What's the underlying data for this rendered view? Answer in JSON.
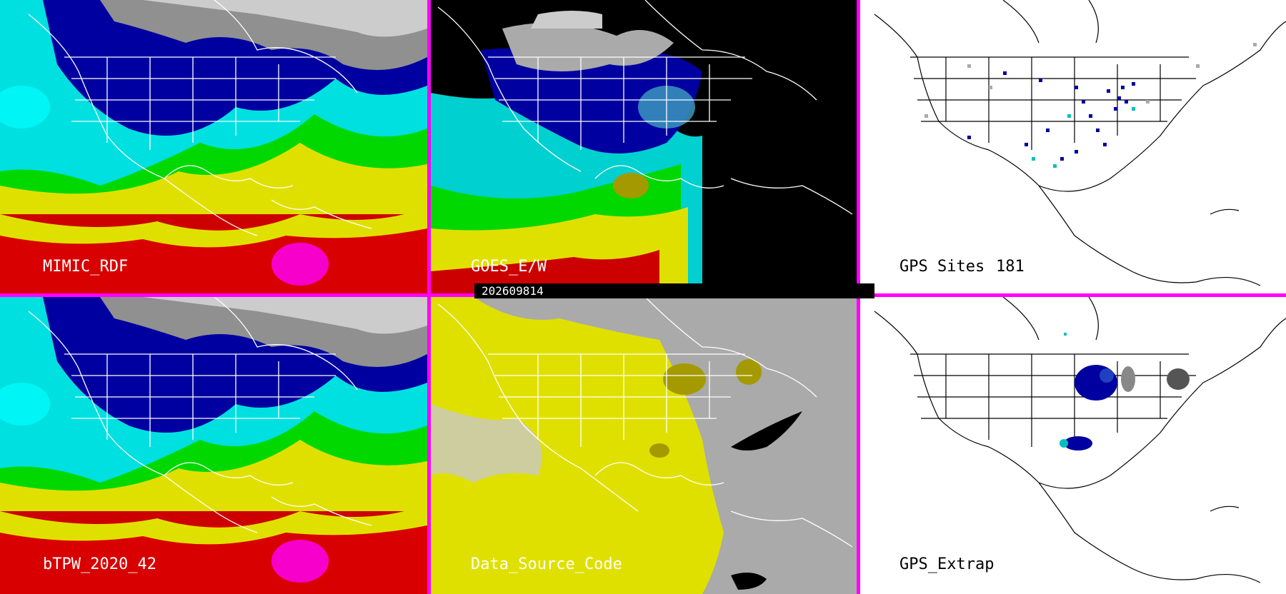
{
  "panels": [
    {
      "id": "p1",
      "label": "MIMIC_RDF",
      "theme": "color"
    },
    {
      "id": "p2",
      "label": "GOES_E/W",
      "theme": "goes"
    },
    {
      "id": "p3",
      "label": "GPS Sites",
      "count": "181",
      "theme": "white"
    },
    {
      "id": "p4",
      "label": "bTPW_2020_42",
      "theme": "color"
    },
    {
      "id": "p5",
      "label": "Data_Source_Code",
      "theme": "yellow"
    },
    {
      "id": "p6",
      "label": "GPS_Extrap",
      "theme": "white"
    }
  ],
  "timestamp": "202609814",
  "colors": {
    "divider": "#ff00ff",
    "red": "#d90000",
    "yellow": "#e0e000",
    "green": "#00e000",
    "cyan": "#00e0e0",
    "blue": "#0000a0",
    "gray": "#aaaaaa",
    "olive": "#a49a00"
  }
}
